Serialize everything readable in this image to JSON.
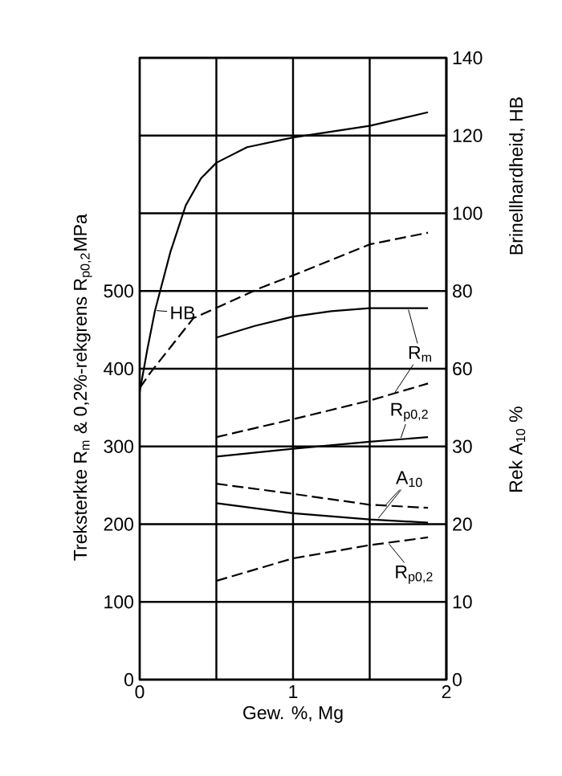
{
  "chart_data": {
    "type": "line",
    "xlabel": "Gew. %,  Mg",
    "ylabel": "Treksterkte R$_{m}$ & 0,2%-rekgrens R$_{p0,2}$MPa",
    "y2label": "Brinellhardheid,  HB",
    "y3label": "Rek A$_{10}$  %",
    "xlim": [
      0,
      2
    ],
    "xticks": [
      0,
      {
        "value": 0.5,
        "label": null
      },
      1,
      {
        "value": 1.5,
        "label": null
      },
      2
    ],
    "ylim": [
      0,
      800
    ],
    "yticks": [
      0,
      100,
      200,
      300,
      400,
      500,
      {
        "value": 600,
        "label": null
      },
      {
        "value": 700,
        "label": null
      },
      {
        "value": 800,
        "label": null
      }
    ],
    "y2lim": [
      -20,
      140
    ],
    "y2ticks": [
      60,
      80,
      100,
      120,
      140
    ],
    "y3lim": [
      0,
      80
    ],
    "y3ticks": [
      0,
      10,
      20,
      30
    ],
    "grid": true,
    "annotations": [
      {
        "text": "HB",
        "x": 0.1,
        "y": 475
      },
      {
        "text": "R$_{m}$",
        "x": 1.75,
        "y": 478
      },
      {
        "text": "R$_{p0,2}$",
        "x": 1.7,
        "y": 309
      },
      {
        "text": "A$_{10}$",
        "x": 1.55,
        "y": 206
      },
      {
        "text": "R$_{p0,2}$",
        "x": 1.62,
        "y": 176
      }
    ],
    "series": [
      {
        "color": "#000000",
        "axis": "y2",
        "line_style": "solid",
        "x": [
          0,
          0.05,
          0.1,
          0.2,
          0.3,
          0.4,
          0.5,
          0.7,
          1.0,
          1.5,
          1.88
        ],
        "values": [
          54,
          65,
          75,
          90,
          102,
          109,
          113,
          117,
          119.5,
          122.5,
          126
        ]
      },
      {
        "color": "#000000",
        "axis": "y2",
        "line_style": "dashed",
        "x": [
          0,
          0.07,
          0.35,
          0.8,
          1.0,
          1.5,
          1.88
        ],
        "values": [
          55,
          59,
          73,
          81,
          84,
          92,
          95
        ]
      },
      {
        "color": "#000000",
        "line_style": "solid",
        "x": [
          0.5,
          0.75,
          1.0,
          1.25,
          1.5,
          1.88
        ],
        "values": [
          440,
          455,
          467,
          474,
          478,
          478
        ]
      },
      {
        "color": "#000000",
        "line_style": "dashed",
        "x": [
          0.5,
          1.0,
          1.5,
          1.88
        ],
        "values": [
          312,
          335,
          359,
          381
        ]
      },
      {
        "color": "#000000",
        "line_style": "solid",
        "x": [
          0.5,
          1.0,
          1.5,
          1.88
        ],
        "values": [
          287,
          297,
          306,
          312
        ]
      },
      {
        "color": "#000000",
        "axis": "y3",
        "line_style": "dashed",
        "x": [
          0.5,
          1.0,
          1.5,
          1.88
        ],
        "values": [
          25.2,
          23.9,
          22.5,
          22.1
        ]
      },
      {
        "color": "#000000",
        "axis": "y3",
        "line_style": "solid",
        "x": [
          0.5,
          1.0,
          1.5,
          1.88
        ],
        "values": [
          22.7,
          21.4,
          20.6,
          20.2
        ]
      },
      {
        "color": "#000000",
        "line_style": "dashed",
        "x": [
          0.5,
          1.0,
          1.5,
          1.88
        ],
        "values": [
          127,
          156,
          173,
          183
        ]
      }
    ]
  }
}
